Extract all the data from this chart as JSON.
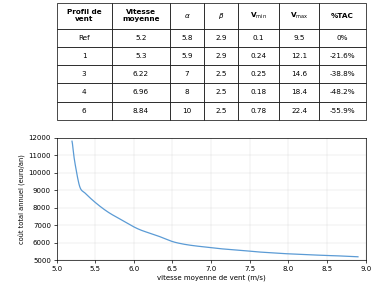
{
  "table_rows_header": [
    "Profil de\nvent",
    "Vitesse\nmoyenne",
    "a",
    "b",
    "Vmin",
    "Vmax",
    "%TAC"
  ],
  "table_rows": [
    [
      "Ref",
      "5.2",
      "5.8",
      "2.9",
      "0.1",
      "9.5",
      "0%"
    ],
    [
      "1",
      "5.3",
      "5.9",
      "2.9",
      "0.24",
      "12.1",
      "-21.6%"
    ],
    [
      "3",
      "6.22",
      "7",
      "2.5",
      "0.25",
      "14.6",
      "-38.8%"
    ],
    [
      "4",
      "6.96",
      "8",
      "2.5",
      "0.18",
      "18.4",
      "-48.2%"
    ],
    [
      "6",
      "8.84",
      "10",
      "2.5",
      "0.78",
      "22.4",
      "-55.9%"
    ]
  ],
  "line_color": "#5b9bd5",
  "xlabel": "vitesse moyenne de vent (m/s)",
  "ylabel": "coût total annuel (euro/an)",
  "xlim": [
    5.0,
    9.0
  ],
  "ylim": [
    5000,
    12000
  ],
  "xticks": [
    5.0,
    5.5,
    6.0,
    6.5,
    7.0,
    7.5,
    8.0,
    8.5,
    9.0
  ],
  "yticks": [
    5000,
    6000,
    7000,
    8000,
    9000,
    10000,
    11000,
    12000
  ],
  "curve_x": [
    5.2,
    5.21,
    5.22,
    5.24,
    5.26,
    5.3,
    5.35,
    5.4,
    5.5,
    5.6,
    5.7,
    5.8,
    5.9,
    6.0,
    6.1,
    6.2,
    6.3,
    6.4,
    6.5,
    6.6,
    6.7,
    6.8,
    6.9,
    7.0,
    7.1,
    7.2,
    7.3,
    7.4,
    7.5,
    7.6,
    7.7,
    7.8,
    7.9,
    8.0,
    8.1,
    8.2,
    8.3,
    8.4,
    8.5,
    8.6,
    8.7,
    8.8,
    8.84,
    8.9
  ],
  "curve_y": [
    11800,
    11500,
    11100,
    10500,
    10000,
    9200,
    8900,
    8700,
    8300,
    7950,
    7650,
    7400,
    7150,
    6900,
    6700,
    6550,
    6400,
    6230,
    6060,
    5950,
    5870,
    5810,
    5760,
    5710,
    5660,
    5620,
    5580,
    5550,
    5510,
    5470,
    5440,
    5410,
    5380,
    5360,
    5340,
    5320,
    5300,
    5280,
    5260,
    5250,
    5230,
    5210,
    5200,
    5190
  ]
}
